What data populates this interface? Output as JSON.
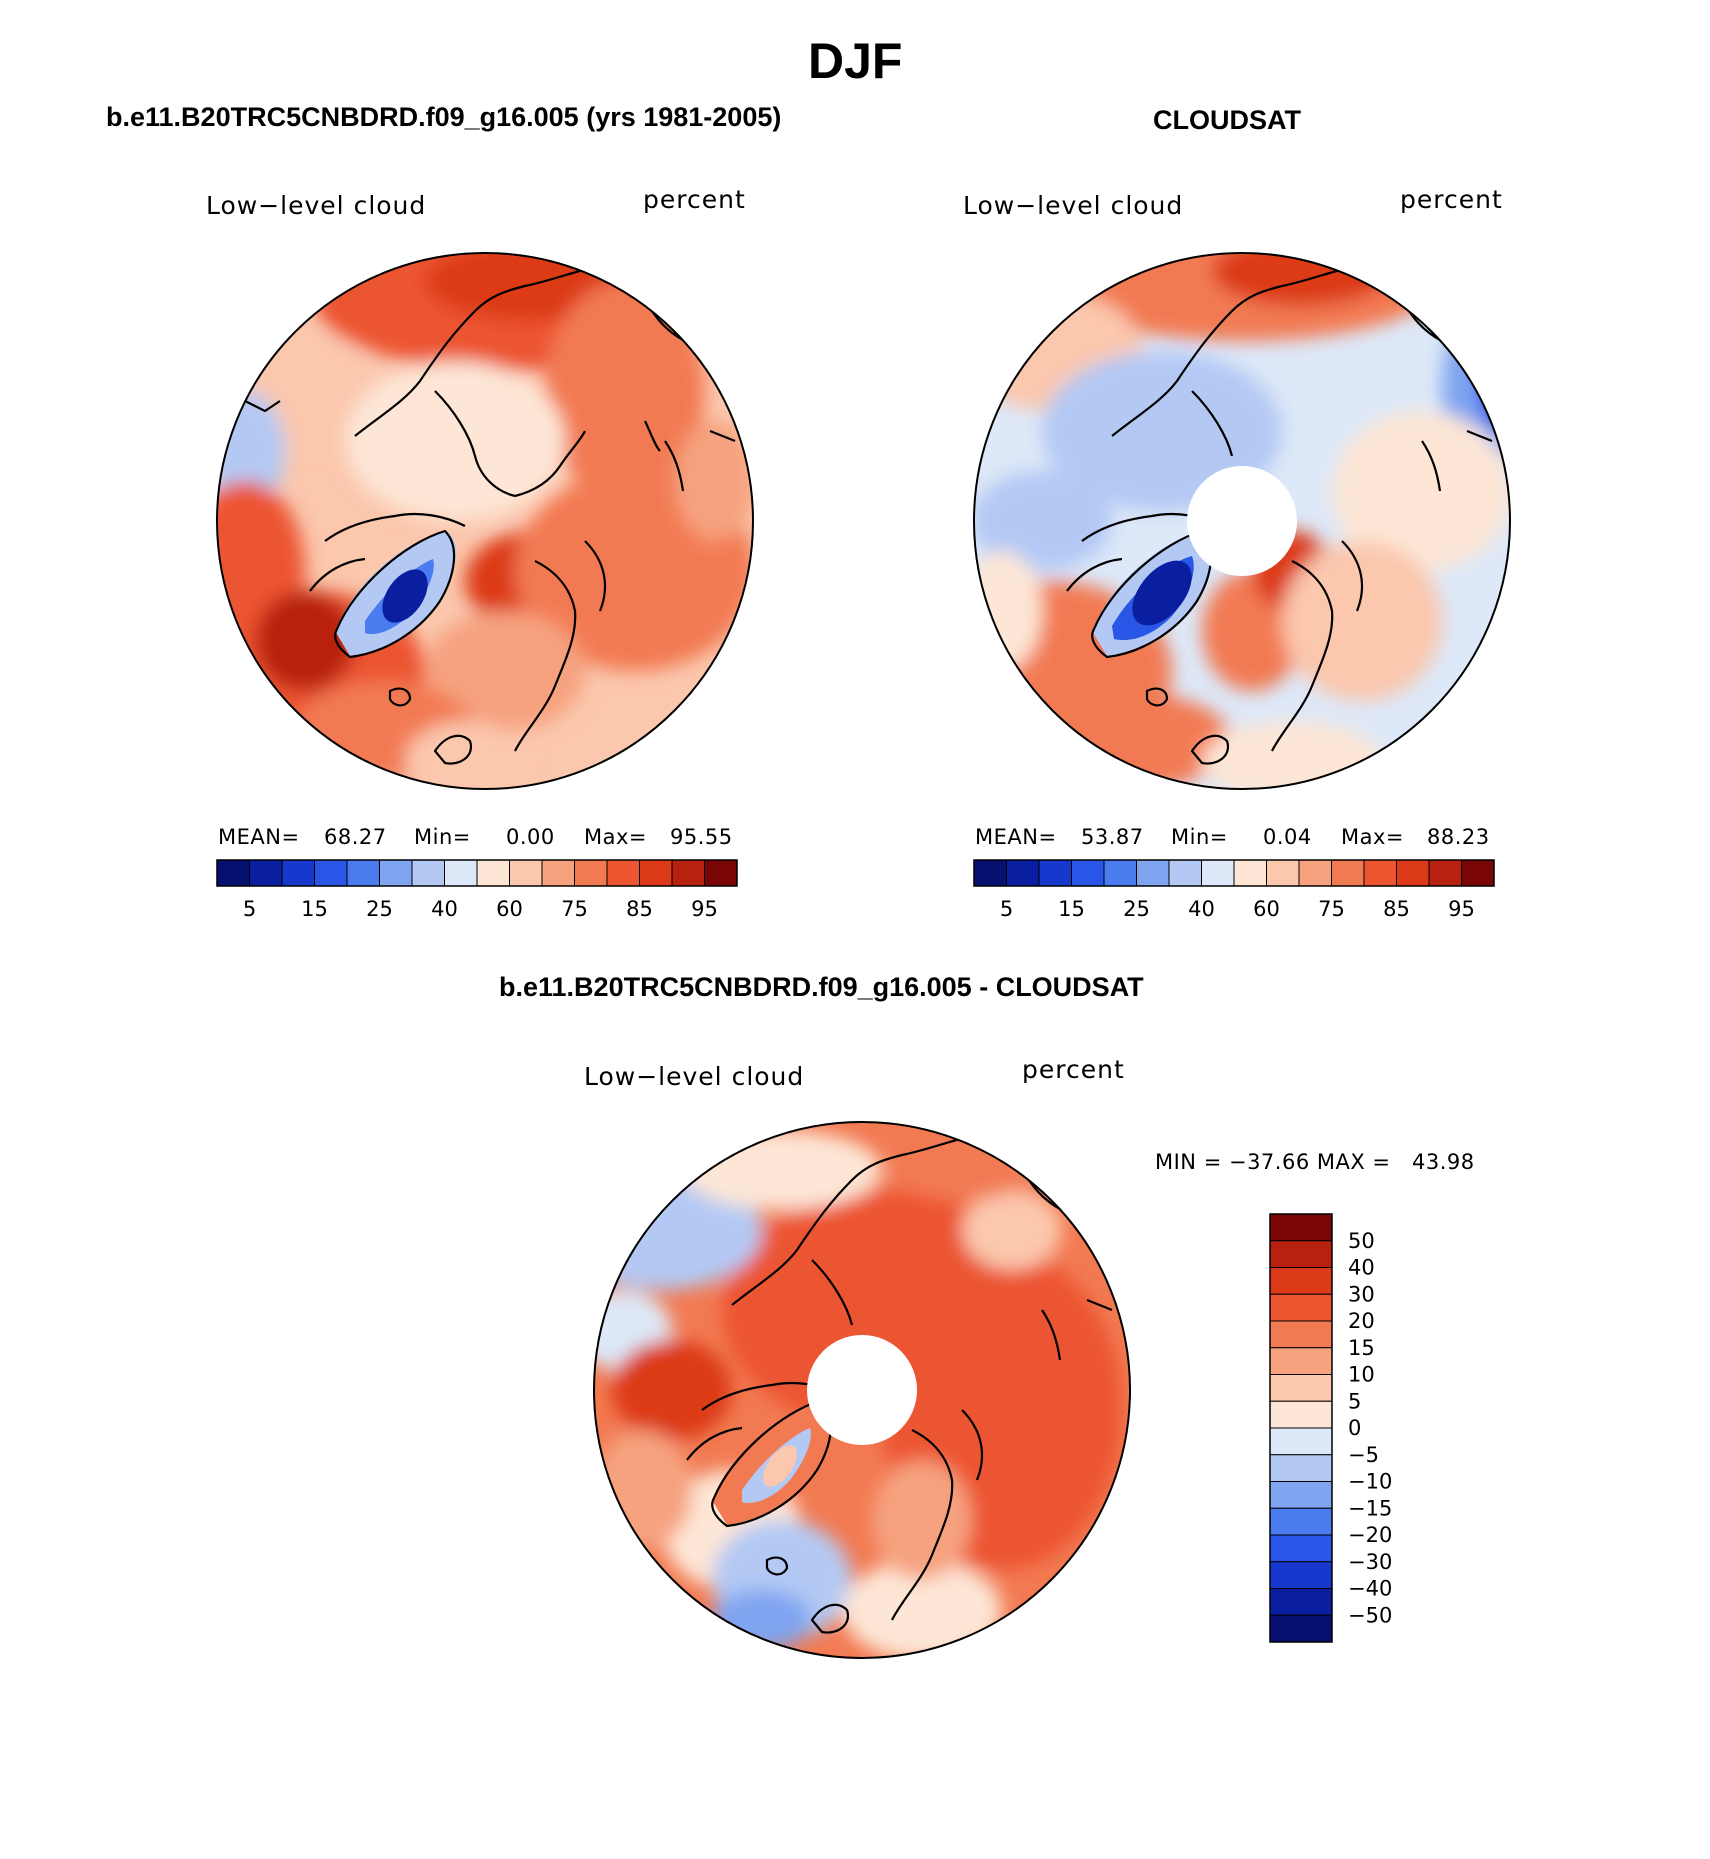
{
  "figure": {
    "title": "DJF",
    "colors": {
      "blue_dark": "#0a1580",
      "blue_mid": "#2a5de0",
      "blue_light": "#b8cdf3",
      "blue_pale": "#dde8f8",
      "cream": "#fde6d6",
      "salmon_light": "#f8b89a",
      "salmon": "#f38b66",
      "orange": "#ee5a33",
      "red": "#d8401d",
      "dark_red": "#9a1208"
    }
  },
  "panels": {
    "model": {
      "title": "b.e11.B20TRC5CNBDRD.f09_g16.005 (yrs 1981-2005)",
      "left_label": "Low−level cloud",
      "right_label": "percent",
      "mean_label": "MEAN=",
      "mean_value": "68.27",
      "min_label": "Min=",
      "min_value": "0.00",
      "max_label": "Max=",
      "max_value": "95.55"
    },
    "obs": {
      "title": "CLOUDSAT",
      "left_label": "Low−level cloud",
      "right_label": "percent",
      "mean_label": "MEAN=",
      "mean_value": "53.87",
      "min_label": "Min=",
      "min_value": "0.04",
      "max_label": "Max=",
      "max_value": "88.23"
    },
    "diff": {
      "title": "b.e11.B20TRC5CNBDRD.f09_g16.005 - CLOUDSAT",
      "left_label": "Low−level cloud",
      "right_label": "percent",
      "minmax": "MIN = −37.66 MAX =   43.98"
    }
  },
  "colorbar_h": {
    "colors": [
      "#06106e",
      "#0a1ea0",
      "#1638cc",
      "#2a56e8",
      "#4a7cf0",
      "#7fa4f0",
      "#b3c9f4",
      "#dde8f8",
      "#fde6d6",
      "#fbc7ad",
      "#f6a27f",
      "#f27a52",
      "#ec5530",
      "#dc3a18",
      "#b82010",
      "#7a0505"
    ],
    "tick_labels": [
      "5",
      "15",
      "25",
      "40",
      "60",
      "75",
      "85",
      "95"
    ]
  },
  "colorbar_v": {
    "colors": [
      "#7a0505",
      "#b82010",
      "#dc3a18",
      "#ec5530",
      "#f27a52",
      "#f6a27f",
      "#fbc7ad",
      "#fde6d6",
      "#dde8f8",
      "#b3c9f4",
      "#7fa4f0",
      "#4a7cf0",
      "#2a56e8",
      "#1638cc",
      "#0a1ea0",
      "#06106e"
    ],
    "tick_labels": [
      "50",
      "40",
      "30",
      "20",
      "15",
      "10",
      "5",
      "0",
      "−5",
      "−10",
      "−15",
      "−20",
      "−30",
      "−40",
      "−50"
    ]
  }
}
